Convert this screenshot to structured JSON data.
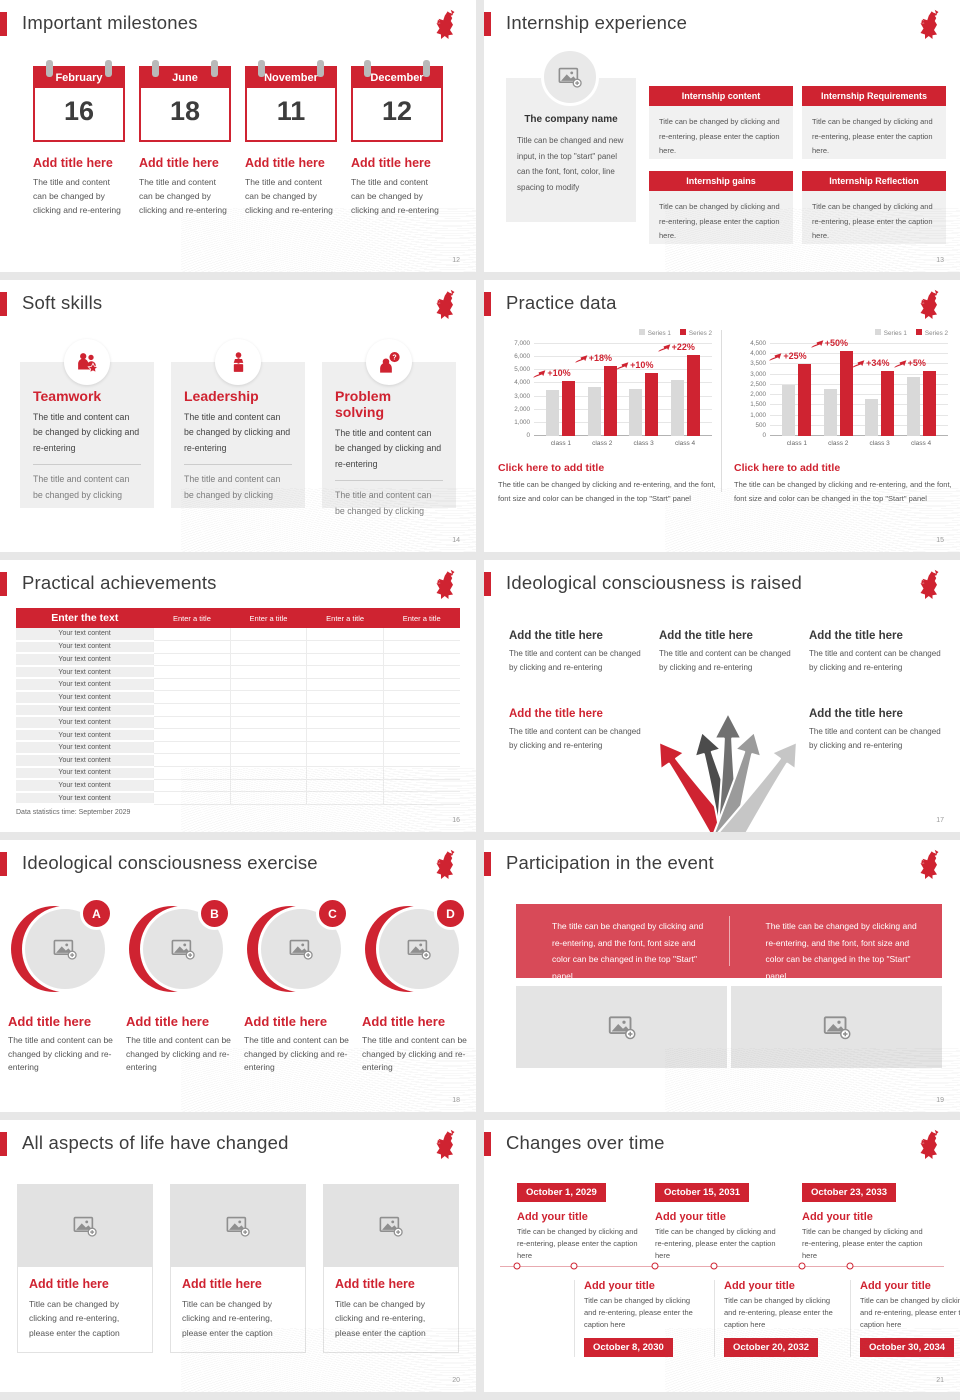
{
  "brand": {
    "accent_red": "#cf2331",
    "banner_red": "#d84a58",
    "logo": "red-horse-logo"
  },
  "slides": [
    {
      "title": "Important milestones",
      "page": "12",
      "items": [
        {
          "month": "February",
          "day": "16",
          "heading": "Add title here",
          "caption": "The title and content can be changed by clicking and re-entering"
        },
        {
          "month": "June",
          "day": "18",
          "heading": "Add title here",
          "caption": "The title and content can be changed by clicking and re-entering"
        },
        {
          "month": "November",
          "day": "11",
          "heading": "Add title here",
          "caption": "The title and content can be changed by clicking and re-entering"
        },
        {
          "month": "December",
          "day": "12",
          "heading": "Add title here",
          "caption": "The title and content can be changed by clicking and re-entering"
        }
      ]
    },
    {
      "title": "Internship experience",
      "page": "13",
      "company": {
        "name": "The company name",
        "caption": "Title can be changed and new input, in the top \"start\" panel can the font, font, color, line spacing to modify"
      },
      "boxes": [
        {
          "heading": "Internship content",
          "caption": "Title can be changed by clicking and re-entering, please enter the caption here."
        },
        {
          "heading": "Internship Requirements",
          "caption": "Title can be changed by clicking and re-entering, please enter the caption here."
        },
        {
          "heading": "Internship gains",
          "caption": "Title can be changed by clicking and re-entering, please enter the caption here."
        },
        {
          "heading": "Internship Reflection",
          "caption": "Title can be changed by clicking and re-entering, please enter the caption here."
        }
      ]
    },
    {
      "title": "Soft skills",
      "page": "14",
      "cards": [
        {
          "icon": "teamwork-icon",
          "heading": "Teamwork",
          "text1": "The title and content can be changed by clicking and re-entering",
          "text2": "The title and content can be changed by clicking"
        },
        {
          "icon": "leadership-icon",
          "heading": "Leadership",
          "text1": "The title and content can be changed by clicking and re-entering",
          "text2": "The title and content can be changed by clicking"
        },
        {
          "icon": "problem-solving-icon",
          "heading": "Problem solving",
          "text1": "The title and content can be changed by clicking and re-entering",
          "text2": "The title and content can be changed by clicking"
        }
      ]
    },
    {
      "title": "Practice data",
      "page": "15",
      "panels": [
        {
          "heading": "Click here to add title",
          "caption": "The title can be changed by clicking and re-entering, and the font, font size and color can be changed in the top \"Start\" panel"
        },
        {
          "heading": "Click here to add title",
          "caption": "The title can be changed by clicking and re-entering, and the font, font size and color can be changed in the top \"Start\" panel"
        }
      ]
    },
    {
      "title": "Practical achievements",
      "page": "16",
      "table": {
        "headers": [
          "Enter the text",
          "Enter a title",
          "Enter a title",
          "Enter a title",
          "Enter a title"
        ],
        "row_label": "Your text content",
        "row_count": 14,
        "footnote": "Data statistics time: September 2029"
      }
    },
    {
      "title": "Ideological consciousness is raised",
      "page": "17",
      "blocks": [
        {
          "heading": "Add the title here",
          "caption": "The title and content can be changed by clicking and re-entering",
          "red": false
        },
        {
          "heading": "Add the title here",
          "caption": "The title and content can be changed by clicking and re-entering",
          "red": false
        },
        {
          "heading": "Add the title here",
          "caption": "The title and content can be changed by clicking and re-entering",
          "red": false
        },
        {
          "heading": "Add the title here",
          "caption": "The title and content can be changed by clicking and re-entering",
          "red": true
        },
        {
          "heading": "Add the title here",
          "caption": "The title and content can be changed by clicking and re-entering",
          "red": false
        }
      ]
    },
    {
      "title": "Ideological consciousness exercise",
      "page": "18",
      "items": [
        {
          "letter": "A",
          "heading": "Add title here",
          "caption": "The title and content can be changed by clicking and re-entering"
        },
        {
          "letter": "B",
          "heading": "Add title here",
          "caption": "The title and content can be changed by clicking and re-entering"
        },
        {
          "letter": "C",
          "heading": "Add title here",
          "caption": "The title and content can be changed by clicking and re-entering"
        },
        {
          "letter": "D",
          "heading": "Add title here",
          "caption": "The title and content can be changed by clicking and re-entering"
        }
      ]
    },
    {
      "title": "Participation in the event",
      "page": "19",
      "banner": [
        "The title can be changed by clicking and re-entering, and the font, font size and color can be changed in the top \"Start\" panel",
        "The title can be changed by clicking and re-entering, and the font, font size and color can be changed in the top \"Start\" panel"
      ]
    },
    {
      "title": "All aspects of life have changed",
      "page": "20",
      "cards": [
        {
          "heading": "Add title here",
          "caption": "Title can be changed by clicking and re-entering, please enter the caption"
        },
        {
          "heading": "Add title here",
          "caption": "Title can be changed by clicking and re-entering, please enter the caption"
        },
        {
          "heading": "Add title here",
          "caption": "Title can be changed by clicking and re-entering, please enter the caption"
        }
      ]
    },
    {
      "title": "Changes over time",
      "page": "21",
      "top_items": [
        {
          "date": "October 1, 2029",
          "heading": "Add your title",
          "caption": "Title can be changed by clicking and re-entering, please enter the caption here"
        },
        {
          "date": "October 15, 2031",
          "heading": "Add your title",
          "caption": "Title can be changed by clicking and re-entering, please enter the caption here"
        },
        {
          "date": "October 23, 2033",
          "heading": "Add your title",
          "caption": "Title can be changed by clicking and re-entering, please enter the caption here"
        }
      ],
      "bottom_items": [
        {
          "date": "October 8, 2030",
          "heading": "Add your title",
          "caption": "Title can be changed by clicking and re-entering, please enter the caption here"
        },
        {
          "date": "October 20, 2032",
          "heading": "Add your title",
          "caption": "Title can be changed by clicking and re-entering, please enter the caption here"
        },
        {
          "date": "October 30, 2034",
          "heading": "Add your title",
          "caption": "Title can be changed by clicking and re-entering, please enter the caption here"
        }
      ]
    }
  ],
  "chart_data": [
    {
      "type": "bar",
      "categories": [
        "class 1",
        "class 2",
        "class 3",
        "class 4"
      ],
      "series": [
        {
          "name": "Series 1",
          "color": "#d9d9d9",
          "values": [
            3500,
            3700,
            3600,
            4300
          ]
        },
        {
          "name": "Series 2",
          "color": "#cf2331",
          "values": [
            4200,
            5300,
            4800,
            6200
          ]
        }
      ],
      "annotations": [
        "+10%",
        "+18%",
        "+10%",
        "+22%"
      ],
      "title": "",
      "xlabel": "",
      "ylabel": "",
      "ylim": [
        0,
        7000
      ],
      "ytick_step": 1000,
      "grid": true,
      "legend_position": "top-right"
    },
    {
      "type": "bar",
      "categories": [
        "class 1",
        "class 2",
        "class 3",
        "class 4"
      ],
      "series": [
        {
          "name": "Series 1",
          "color": "#d9d9d9",
          "values": [
            2500,
            2300,
            1800,
            2900
          ]
        },
        {
          "name": "Series 2",
          "color": "#cf2331",
          "values": [
            3500,
            4150,
            3200,
            3200
          ]
        }
      ],
      "annotations": [
        "+25%",
        "+50%",
        "+34%",
        "+5%"
      ],
      "title": "",
      "xlabel": "",
      "ylabel": "",
      "ylim": [
        0,
        4500
      ],
      "ytick_step": 500,
      "grid": true,
      "legend_position": "top-right"
    }
  ]
}
